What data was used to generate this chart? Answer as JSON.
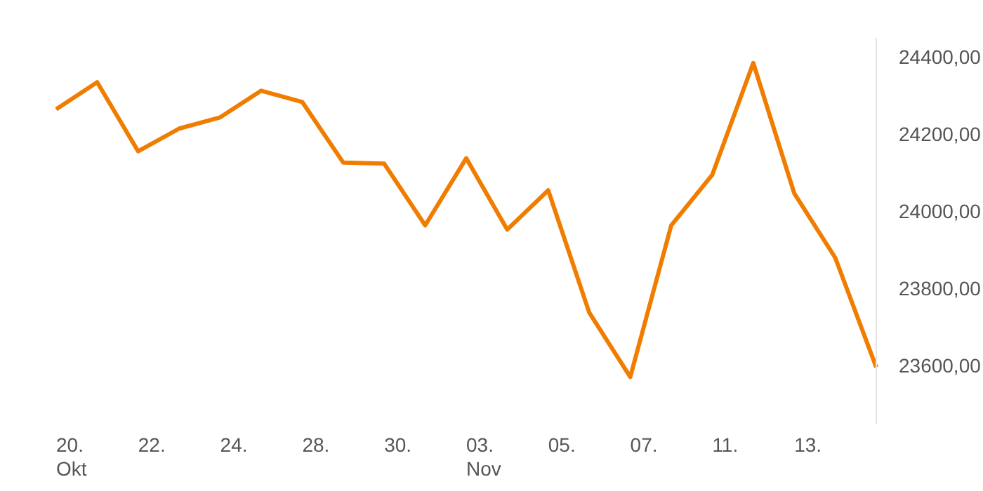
{
  "chart_data": {
    "type": "line",
    "categories": [
      "20.\nOkt",
      null,
      "22.",
      null,
      "24.",
      null,
      "28.",
      null,
      "30.",
      null,
      "03.\nNov",
      null,
      "05.",
      null,
      "07.",
      null,
      "11.",
      null,
      "13.",
      null,
      null
    ],
    "series": [
      {
        "color": "#f07d00",
        "values": [
          24265,
          24335,
          24156,
          24215,
          24244,
          24313,
          24284,
          24127,
          24124,
          23964,
          24138,
          23953,
          24055,
          23738,
          23571,
          23964,
          24095,
          24385,
          24047,
          23880,
          23596
        ]
      }
    ],
    "ylim": [
      23450,
      24450
    ],
    "yticks": [
      {
        "value": 23600,
        "label": "23600,00"
      },
      {
        "value": 23800,
        "label": "23800,00"
      },
      {
        "value": 24000,
        "label": "24000,00"
      },
      {
        "value": 24200,
        "label": "24200,00"
      },
      {
        "value": 24400,
        "label": "24400,00"
      }
    ],
    "grid": false,
    "legend": false,
    "marker": "none",
    "line_style": "solid"
  }
}
